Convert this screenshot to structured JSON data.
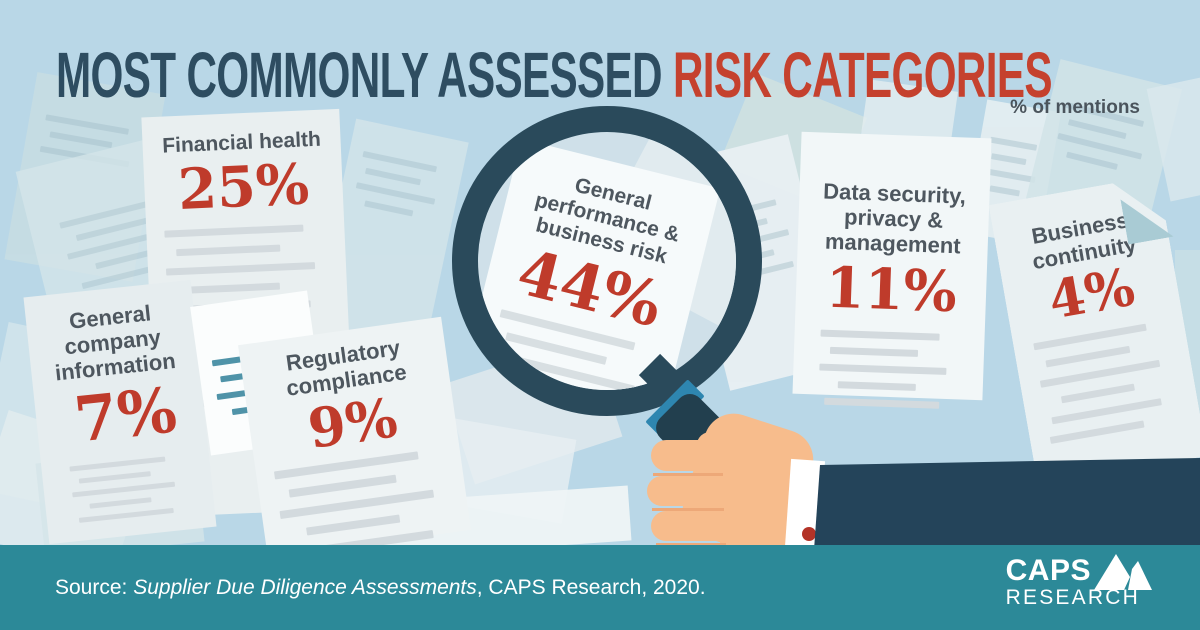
{
  "title": {
    "prefix": "MOST COMMONLY ASSESSED ",
    "highlight": "RISK CATEGORIES",
    "subtitle": "% of mentions"
  },
  "docs": {
    "financial": {
      "label": "Financial health",
      "value": "25%"
    },
    "company": {
      "label": "General company information",
      "value": "7%"
    },
    "regulatory": {
      "label": "Regulatory compliance",
      "value": "9%"
    },
    "performance": {
      "label": "General performance & business risk",
      "value": "44%"
    },
    "datasec": {
      "label": "Data security, privacy & management",
      "value": "11%"
    },
    "continuity": {
      "label": "Business continuity",
      "value": "4%"
    }
  },
  "footer": {
    "prefix": "Source: ",
    "italic": "Supplier Due Diligence Assessments",
    "suffix": ", CAPS Research, 2020."
  },
  "logo": {
    "top": "CAPS",
    "bottom": "RESEARCH"
  },
  "colors": {
    "background": "#b9d7e7",
    "title_dark": "#2e4d61",
    "accent_red": "#c5412e",
    "value_red": "#bf3b2b",
    "label_gray": "#4e575f",
    "footer_teal": "#2c8998",
    "magnifier_dark": "#2a4a5b",
    "handle_band_blue": "#2e86b0",
    "skin": "#f7bc8c",
    "suit_navy": "#24445a",
    "cufflink_red": "#b33327"
  },
  "chart_data": {
    "type": "bar",
    "variant": "infographic — percentages shown on scattered documents, top category under a magnifying glass",
    "title": "MOST COMMONLY ASSESSED RISK CATEGORIES",
    "unit": "% of mentions",
    "categories": [
      "General performance & business risk",
      "Financial health",
      "Data security, privacy & management",
      "Regulatory compliance",
      "General company information",
      "Business continuity"
    ],
    "values": [
      44,
      25,
      11,
      9,
      7,
      4
    ],
    "highlighted_category": "General performance & business risk",
    "source": "Supplier Due Diligence Assessments, CAPS Research, 2020"
  }
}
